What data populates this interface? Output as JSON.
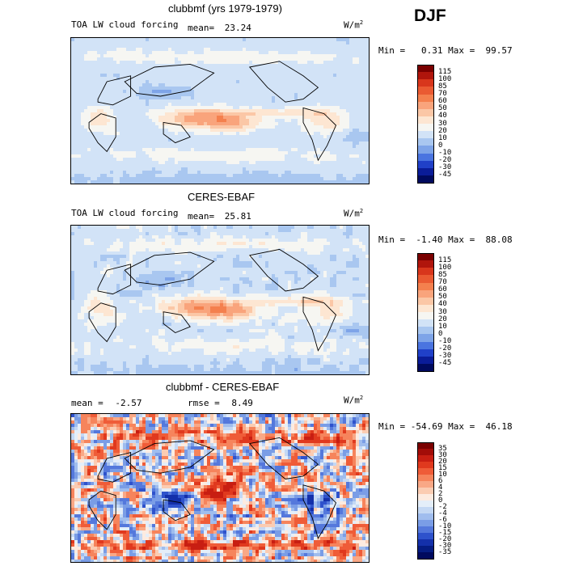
{
  "season": "DJF",
  "units_label": "W/m",
  "units_sup": "2",
  "panels": [
    {
      "title": "clubbmf (yrs 1979-1979)",
      "left_label": "TOA LW cloud forcing",
      "stat_label": "mean=",
      "stat_value": "23.24",
      "rmse_label": "",
      "rmse_value": "",
      "minmax": "Min =   0.31 Max =  99.57",
      "palette": "abs",
      "levels": [
        "115",
        "100",
        "85",
        "70",
        "60",
        "50",
        "40",
        "30",
        "20",
        "10",
        "0",
        "-10",
        "-20",
        "-30",
        "-45"
      ]
    },
    {
      "title": "CERES-EBAF",
      "left_label": "TOA LW cloud forcing",
      "stat_label": "mean=",
      "stat_value": "25.81",
      "rmse_label": "",
      "rmse_value": "",
      "minmax": "Min =  -1.40 Max =  88.08",
      "palette": "abs",
      "levels": [
        "115",
        "100",
        "85",
        "70",
        "60",
        "50",
        "40",
        "30",
        "20",
        "10",
        "0",
        "-10",
        "-20",
        "-30",
        "-45"
      ]
    },
    {
      "title": "clubbmf - CERES-EBAF",
      "left_label": "mean =",
      "stat_label": "",
      "stat_value": "-2.57",
      "rmse_label": "rmse =",
      "rmse_value": "8.49",
      "minmax": "Min = -54.69 Max =  46.18",
      "palette": "diff",
      "levels": [
        "35",
        "30",
        "20",
        "15",
        "10",
        "6",
        "4",
        "2",
        "0",
        "-2",
        "-4",
        "-6",
        "-10",
        "-15",
        "-20",
        "-30",
        "-35"
      ]
    }
  ],
  "colors": {
    "abs": [
      "#7a0000",
      "#b0150c",
      "#d8361c",
      "#ea5a32",
      "#f4804e",
      "#f9a47c",
      "#fbc7a6",
      "#fde6d2",
      "#f6f6f2",
      "#d2e3f7",
      "#a9c7f0",
      "#7ea4e8",
      "#4a74e0",
      "#2040c8",
      "#0a1c98",
      "#000a5e"
    ],
    "diff": [
      "#7a0000",
      "#a20c08",
      "#c81e12",
      "#e0391e",
      "#ef5c38",
      "#f6845c",
      "#f9a886",
      "#fbccb2",
      "#fdebe0",
      "#e4eef9",
      "#c4d8f4",
      "#a0bdee",
      "#7a9de6",
      "#5478dc",
      "#2e52cc",
      "#1430aa",
      "#051c82",
      "#000a5e"
    ],
    "land_line": "#000000"
  }
}
